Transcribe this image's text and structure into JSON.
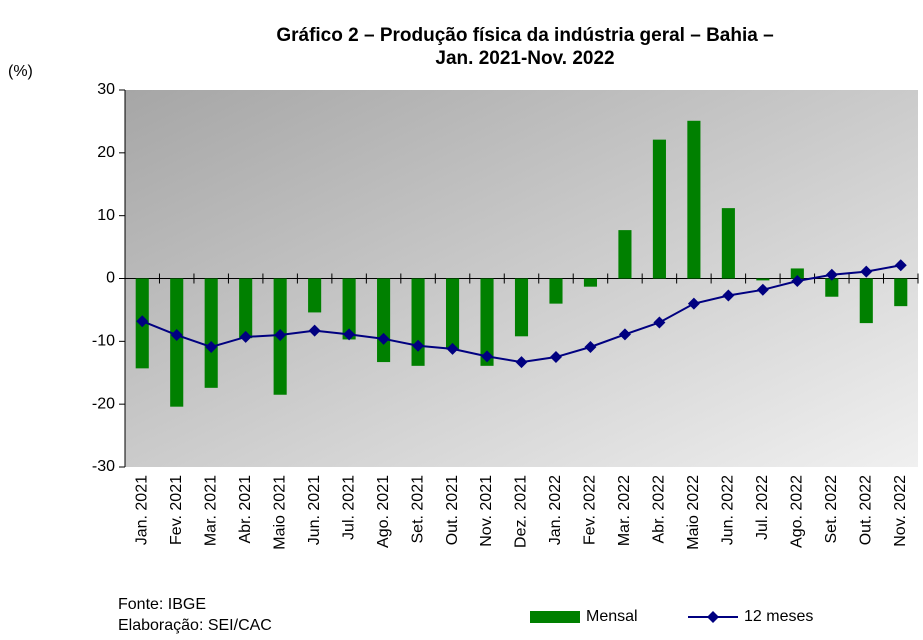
{
  "chart_data": {
    "type": "bar_line",
    "title": "Gráfico 2 – Produção física da indústria geral – Bahia – Jan. 2021-Nov. 2022",
    "y_label": "(%)",
    "categories": [
      "Jan. 2021",
      "Fev. 2021",
      "Mar. 2021",
      "Abr. 2021",
      "Maio 2021",
      "Jun. 2021",
      "Jul. 2021",
      "Ago. 2021",
      "Set. 2021",
      "Out. 2021",
      "Nov. 2021",
      "Dez. 2021",
      "Jan. 2022",
      "Fev. 2022",
      "Mar. 2022",
      "Abr. 2022",
      "Maio 2022",
      "Jun. 2022",
      "Jul. 2022",
      "Ago. 2022",
      "Set. 2022",
      "Out. 2022",
      "Nov. 2022"
    ],
    "series": [
      {
        "name": "Mensal",
        "type": "bar",
        "color": "#008000",
        "values": [
          -14.3,
          -20.4,
          -17.4,
          -9.5,
          -18.5,
          -5.4,
          -9.7,
          -13.3,
          -13.9,
          -11.3,
          -13.9,
          -9.2,
          -4.0,
          -1.3,
          7.7,
          22.1,
          25.1,
          11.2,
          -0.3,
          1.6,
          -2.9,
          -7.1,
          -4.4
        ]
      },
      {
        "name": "12 meses",
        "type": "line",
        "color": "#000080",
        "values": [
          -6.8,
          -9.0,
          -10.9,
          -9.3,
          -9.0,
          -8.3,
          -8.9,
          -9.6,
          -10.7,
          -11.2,
          -12.4,
          -13.3,
          -12.5,
          -10.9,
          -8.9,
          -7.0,
          -4.0,
          -2.7,
          -1.8,
          -0.4,
          0.6,
          1.1,
          2.1
        ]
      }
    ],
    "ylim": [
      -30,
      30
    ],
    "yticks": [
      -30,
      -20,
      -10,
      0,
      10,
      20,
      30
    ],
    "source": "Fonte: IBGE",
    "credit": "Elaboração: SEI/CAC"
  }
}
